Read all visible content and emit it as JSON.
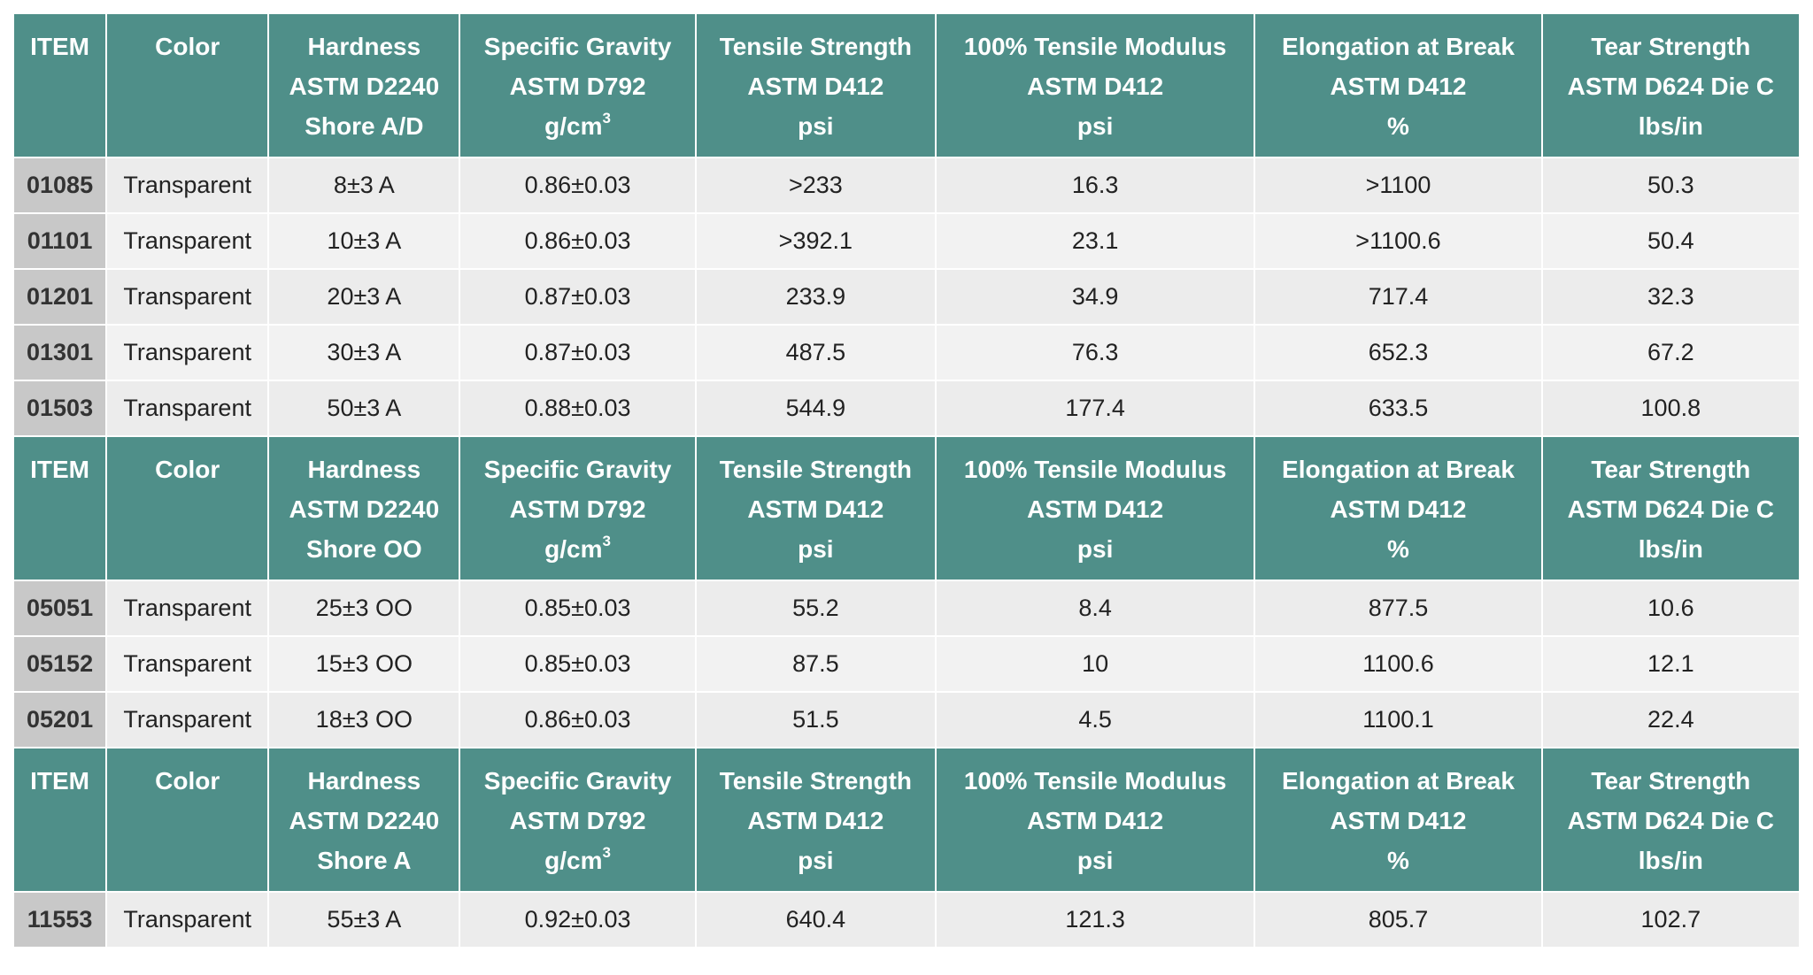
{
  "sections": [
    {
      "header": {
        "item": "ITEM",
        "color": "Color",
        "hardness": [
          "Hardness",
          "ASTM D2240",
          "Shore A/D"
        ],
        "specific_gravity": [
          "Specific Gravity",
          "ASTM D792",
          "g/cm",
          "3"
        ],
        "tensile_strength": [
          "Tensile Strength",
          "ASTM D412",
          "psi"
        ],
        "modulus": [
          "100% Tensile Modulus",
          "ASTM D412",
          "psi"
        ],
        "elongation": [
          "Elongation at Break",
          "ASTM D412",
          "%"
        ],
        "tear": [
          "Tear Strength",
          "ASTM D624 Die C",
          "lbs/in"
        ]
      },
      "rows": [
        [
          "01085",
          "Transparent",
          "8±3 A",
          "0.86±0.03",
          ">233",
          "16.3",
          ">1100",
          "50.3"
        ],
        [
          "01101",
          "Transparent",
          "10±3 A",
          "0.86±0.03",
          ">392.1",
          "23.1",
          ">1100.6",
          "50.4"
        ],
        [
          "01201",
          "Transparent",
          "20±3 A",
          "0.87±0.03",
          "233.9",
          "34.9",
          "717.4",
          "32.3"
        ],
        [
          "01301",
          "Transparent",
          "30±3 A",
          "0.87±0.03",
          "487.5",
          "76.3",
          "652.3",
          "67.2"
        ],
        [
          "01503",
          "Transparent",
          "50±3 A",
          "0.88±0.03",
          "544.9",
          "177.4",
          "633.5",
          "100.8"
        ]
      ]
    },
    {
      "header": {
        "item": "ITEM",
        "color": "Color",
        "hardness": [
          "Hardness",
          "ASTM D2240",
          "Shore OO"
        ],
        "specific_gravity": [
          "Specific Gravity",
          "ASTM D792",
          "g/cm",
          "3"
        ],
        "tensile_strength": [
          "Tensile Strength",
          "ASTM D412",
          "psi"
        ],
        "modulus": [
          "100% Tensile Modulus",
          "ASTM D412",
          "psi"
        ],
        "elongation": [
          "Elongation at Break",
          "ASTM D412",
          "%"
        ],
        "tear": [
          "Tear Strength",
          "ASTM D624 Die C",
          "lbs/in"
        ]
      },
      "rows": [
        [
          "05051",
          "Transparent",
          "25±3 OO",
          "0.85±0.03",
          "55.2",
          "8.4",
          "877.5",
          "10.6"
        ],
        [
          "05152",
          "Transparent",
          "15±3 OO",
          "0.85±0.03",
          "87.5",
          "10",
          "1100.6",
          "12.1"
        ],
        [
          "05201",
          "Transparent",
          "18±3 OO",
          "0.86±0.03",
          "51.5",
          "4.5",
          "1100.1",
          "22.4"
        ]
      ]
    },
    {
      "header": {
        "item": "ITEM",
        "color": "Color",
        "hardness": [
          "Hardness",
          "ASTM D2240",
          "Shore A"
        ],
        "specific_gravity": [
          "Specific Gravity",
          "ASTM D792",
          "g/cm",
          "3"
        ],
        "tensile_strength": [
          "Tensile Strength",
          "ASTM D412",
          "psi"
        ],
        "modulus": [
          "100% Tensile Modulus",
          "ASTM D412",
          "psi"
        ],
        "elongation": [
          "Elongation at Break",
          "ASTM D412",
          "%"
        ],
        "tear": [
          "Tear Strength",
          "ASTM D624 Die C",
          "lbs/in"
        ]
      },
      "rows": [
        [
          "11553",
          "Transparent",
          "55±3 A",
          "0.92±0.03",
          "640.4",
          "121.3",
          "805.7",
          "102.7"
        ]
      ]
    }
  ]
}
